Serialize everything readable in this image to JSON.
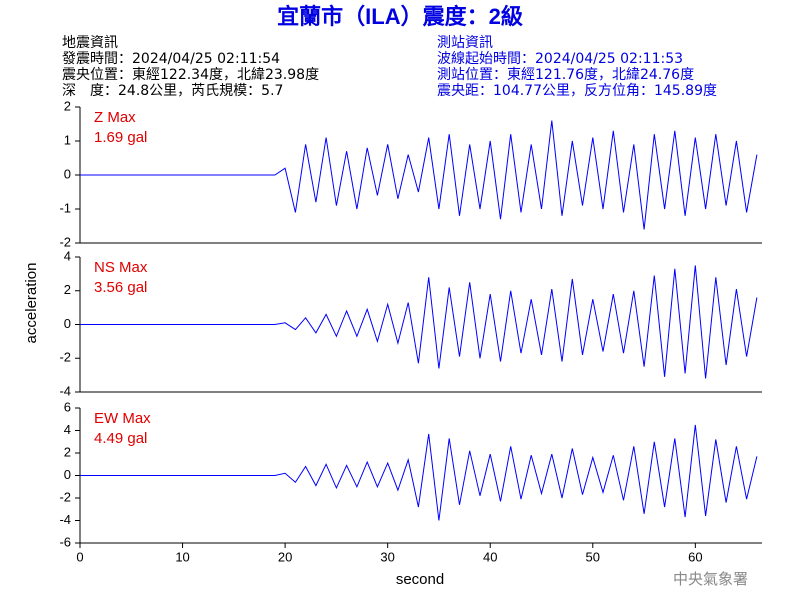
{
  "header": {
    "title": "宜蘭市（ILA）震度：2級",
    "left": [
      "地震資訊",
      "發震時間：2024/04/25 02:11:54",
      "震央位置：東經122.34度，北緯23.98度",
      "深　度：24.8公里，芮氏規模：5.7"
    ],
    "right": [
      "測站資訊",
      "波線起始時間：2024/04/25 02:11:53",
      "測站位置：東經121.76度，北緯24.76度",
      "震央距：104.77公里，反方位角：145.89度"
    ]
  },
  "x_label": "second",
  "y_label": "acceleration",
  "credit": "中央氣象署",
  "chart_data": [
    {
      "type": "line",
      "max_label": "Z Max",
      "max_value": "1.69 gal",
      "color": "#0000ff",
      "xlim": [
        0,
        66.5
      ],
      "ylim": [
        -2,
        2
      ],
      "yticks": [
        -2,
        -1,
        0,
        1,
        2
      ],
      "x": [
        0,
        1,
        2,
        3,
        4,
        5,
        6,
        7,
        8,
        9,
        10,
        11,
        12,
        13,
        14,
        15,
        16,
        17,
        18,
        19,
        20,
        21,
        22,
        23,
        24,
        25,
        26,
        27,
        28,
        29,
        30,
        31,
        32,
        33,
        34,
        35,
        36,
        37,
        38,
        39,
        40,
        41,
        42,
        43,
        44,
        45,
        46,
        47,
        48,
        49,
        50,
        51,
        52,
        53,
        54,
        55,
        56,
        57,
        58,
        59,
        60,
        61,
        62,
        63,
        64,
        65,
        66
      ],
      "values": [
        0,
        0,
        0,
        0,
        0,
        0,
        0,
        0,
        0,
        0,
        0,
        0,
        0,
        0,
        0,
        0,
        0,
        0,
        0,
        0,
        0.2,
        -1.1,
        0.9,
        -0.8,
        1.1,
        -0.9,
        0.7,
        -1.0,
        0.8,
        -0.6,
        0.9,
        -0.7,
        0.6,
        -0.5,
        1.1,
        -1.0,
        1.2,
        -1.2,
        0.9,
        -1.0,
        1.0,
        -1.3,
        1.2,
        -1.1,
        0.9,
        -1.0,
        1.6,
        -1.2,
        1.0,
        -0.9,
        1.1,
        -1.0,
        1.3,
        -1.1,
        0.9,
        -1.6,
        1.2,
        -1.0,
        1.3,
        -1.2,
        1.1,
        -1.0,
        1.2,
        -0.9,
        1.0,
        -1.1,
        0.6
      ]
    },
    {
      "type": "line",
      "max_label": "NS Max",
      "max_value": "3.56 gal",
      "color": "#0000ff",
      "xlim": [
        0,
        66.5
      ],
      "ylim": [
        -4,
        4
      ],
      "yticks": [
        -4,
        -2,
        0,
        2,
        4
      ],
      "x": [
        0,
        1,
        2,
        3,
        4,
        5,
        6,
        7,
        8,
        9,
        10,
        11,
        12,
        13,
        14,
        15,
        16,
        17,
        18,
        19,
        20,
        21,
        22,
        23,
        24,
        25,
        26,
        27,
        28,
        29,
        30,
        31,
        32,
        33,
        34,
        35,
        36,
        37,
        38,
        39,
        40,
        41,
        42,
        43,
        44,
        45,
        46,
        47,
        48,
        49,
        50,
        51,
        52,
        53,
        54,
        55,
        56,
        57,
        58,
        59,
        60,
        61,
        62,
        63,
        64,
        65,
        66
      ],
      "values": [
        0,
        0,
        0,
        0,
        0,
        0,
        0,
        0,
        0,
        0,
        0,
        0,
        0,
        0,
        0,
        0,
        0,
        0,
        0,
        0,
        0.1,
        -0.3,
        0.4,
        -0.5,
        0.6,
        -0.7,
        0.8,
        -0.7,
        0.9,
        -1.0,
        1.2,
        -1.1,
        1.3,
        -2.3,
        2.8,
        -2.6,
        2.2,
        -1.9,
        2.5,
        -2.0,
        1.8,
        -2.2,
        2.0,
        -1.7,
        1.5,
        -1.8,
        2.1,
        -2.2,
        2.7,
        -1.8,
        1.5,
        -1.6,
        1.8,
        -1.7,
        2.0,
        -2.5,
        2.9,
        -3.1,
        3.3,
        -2.9,
        3.5,
        -3.2,
        2.8,
        -2.4,
        2.1,
        -1.9,
        1.6
      ]
    },
    {
      "type": "line",
      "max_label": "EW Max",
      "max_value": "4.49 gal",
      "color": "#0000ff",
      "xlim": [
        0,
        66.5
      ],
      "ylim": [
        -6,
        6
      ],
      "yticks": [
        -6,
        -4,
        -2,
        0,
        2,
        4,
        6
      ],
      "xticks": [
        0,
        10,
        20,
        30,
        40,
        50,
        60
      ],
      "x": [
        0,
        1,
        2,
        3,
        4,
        5,
        6,
        7,
        8,
        9,
        10,
        11,
        12,
        13,
        14,
        15,
        16,
        17,
        18,
        19,
        20,
        21,
        22,
        23,
        24,
        25,
        26,
        27,
        28,
        29,
        30,
        31,
        32,
        33,
        34,
        35,
        36,
        37,
        38,
        39,
        40,
        41,
        42,
        43,
        44,
        45,
        46,
        47,
        48,
        49,
        50,
        51,
        52,
        53,
        54,
        55,
        56,
        57,
        58,
        59,
        60,
        61,
        62,
        63,
        64,
        65,
        66
      ],
      "values": [
        0,
        0,
        0,
        0,
        0,
        0,
        0,
        0,
        0,
        0,
        0,
        0,
        0,
        0,
        0,
        0,
        0,
        0,
        0,
        0,
        0.2,
        -0.6,
        0.8,
        -0.9,
        1.0,
        -1.1,
        0.9,
        -1.0,
        1.2,
        -1.0,
        1.1,
        -1.3,
        1.4,
        -2.8,
        3.7,
        -4.0,
        3.3,
        -2.6,
        2.2,
        -1.8,
        1.9,
        -2.3,
        2.6,
        -2.1,
        1.8,
        -1.6,
        1.9,
        -2.0,
        2.4,
        -1.7,
        1.6,
        -1.5,
        1.8,
        -2.2,
        2.6,
        -3.4,
        3.0,
        -2.8,
        3.3,
        -3.7,
        4.5,
        -3.6,
        3.2,
        -2.4,
        2.6,
        -2.1,
        1.7
      ]
    }
  ]
}
